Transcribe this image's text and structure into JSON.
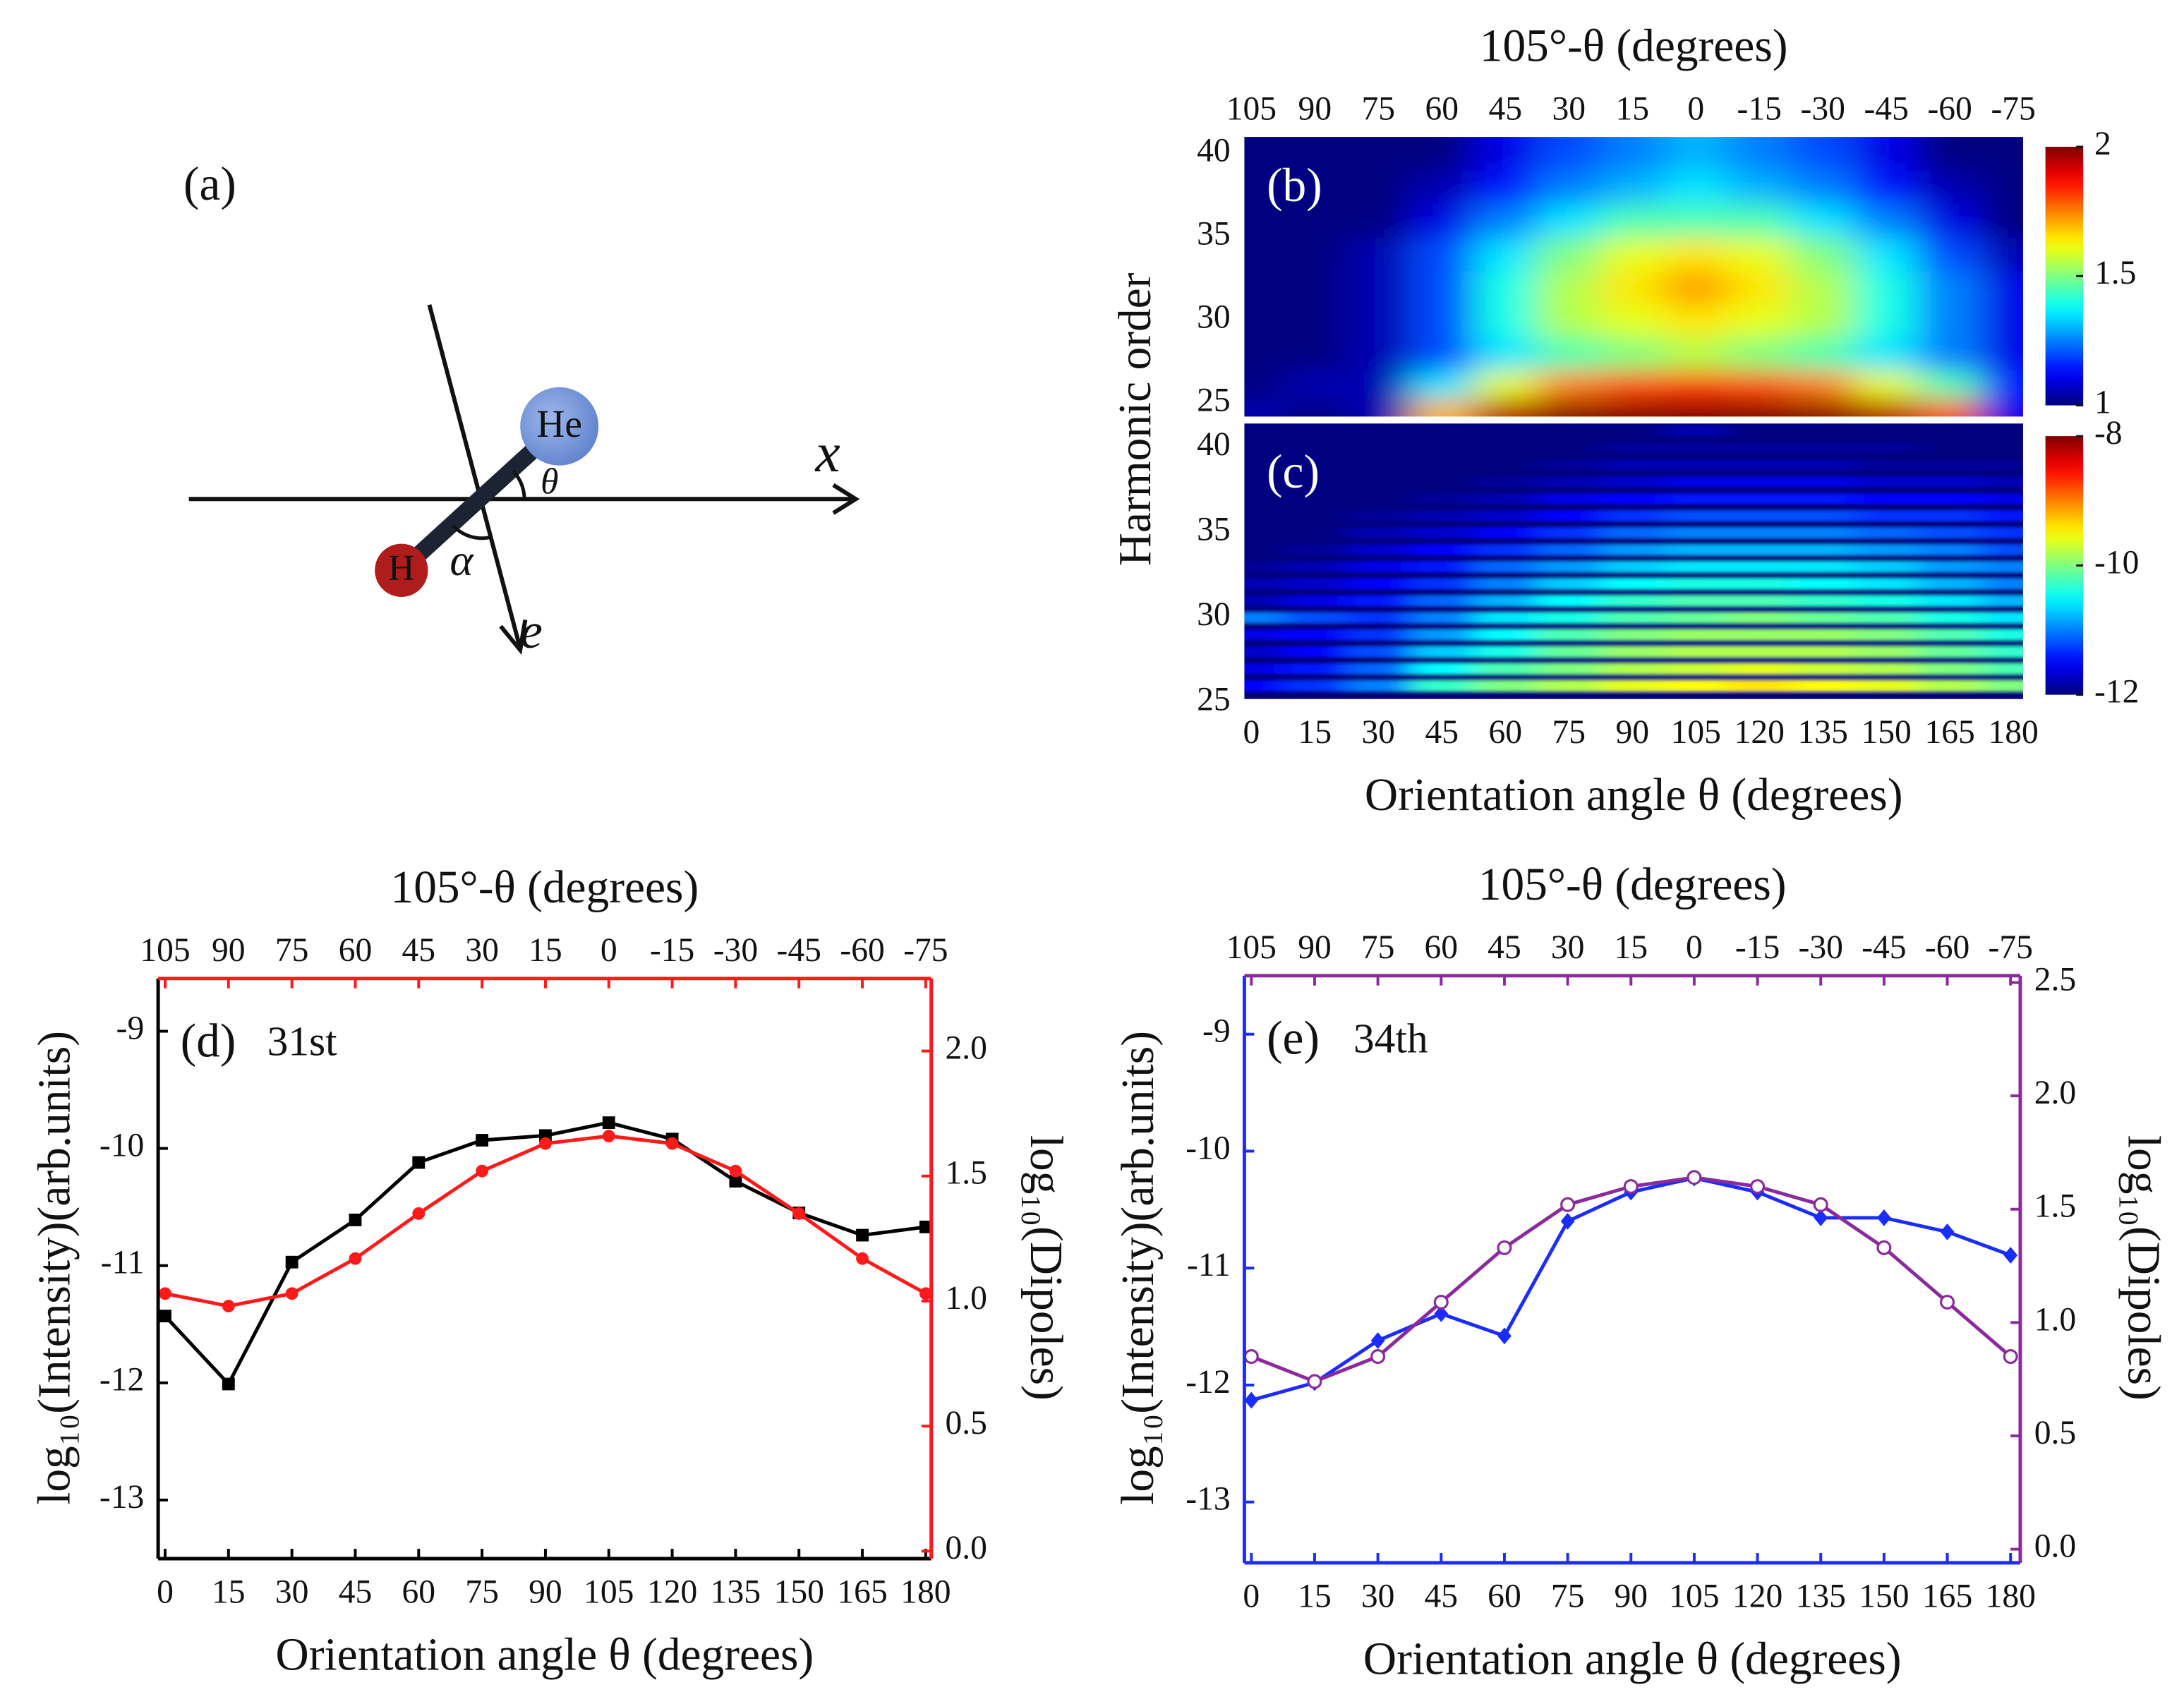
{
  "diagram": {
    "label": "(a)",
    "atoms": [
      "He",
      "H"
    ],
    "axis": "x",
    "field": "e⃗",
    "angles": [
      "θ",
      "α"
    ]
  },
  "chart_data": [
    {
      "type": "heatmap",
      "label": "(b)",
      "x2label": "105°-θ (degrees)",
      "ylabel": "Harmonic order",
      "x": [
        0,
        15,
        30,
        45,
        60,
        75,
        90,
        105,
        120,
        135,
        150,
        165,
        180
      ],
      "y": [
        24.5,
        26,
        28,
        30,
        32,
        34,
        36,
        38,
        40
      ],
      "values": [
        [
          1.05,
          1.0,
          1.05,
          1.7,
          1.95,
          2.0,
          2.0,
          2.0,
          2.0,
          2.0,
          1.95,
          1.8,
          1.1
        ],
        [
          1.0,
          1.05,
          1.05,
          1.35,
          1.6,
          1.75,
          1.8,
          1.82,
          1.8,
          1.75,
          1.6,
          1.45,
          1.15
        ],
        [
          1.0,
          1.0,
          1.05,
          1.2,
          1.35,
          1.45,
          1.5,
          1.55,
          1.5,
          1.45,
          1.35,
          1.25,
          1.1
        ],
        [
          1.0,
          1.0,
          1.05,
          1.2,
          1.4,
          1.55,
          1.6,
          1.65,
          1.6,
          1.55,
          1.4,
          1.25,
          1.1
        ],
        [
          1.0,
          1.0,
          1.05,
          1.2,
          1.4,
          1.55,
          1.65,
          1.72,
          1.65,
          1.55,
          1.4,
          1.25,
          1.1
        ],
        [
          1.0,
          1.0,
          1.05,
          1.2,
          1.35,
          1.5,
          1.6,
          1.65,
          1.6,
          1.5,
          1.35,
          1.2,
          1.05
        ],
        [
          1.0,
          1.0,
          1.0,
          1.1,
          1.25,
          1.35,
          1.45,
          1.45,
          1.45,
          1.35,
          1.25,
          1.1,
          1.0
        ],
        [
          1.0,
          1.0,
          1.0,
          1.05,
          1.15,
          1.25,
          1.3,
          1.35,
          1.3,
          1.25,
          1.15,
          1.05,
          1.0
        ],
        [
          1.0,
          1.0,
          1.0,
          1.0,
          1.1,
          1.2,
          1.25,
          1.3,
          1.25,
          1.2,
          1.1,
          1.0,
          1.0
        ]
      ],
      "xlim": [
        -1.65,
        182.3
      ],
      "ylim": [
        24.2,
        41
      ],
      "yticks": [
        25,
        30,
        35,
        40
      ],
      "x2ticks": [
        {
          "value": 0,
          "label": "105"
        },
        {
          "value": 15,
          "label": "90"
        },
        {
          "value": 30,
          "label": "75"
        },
        {
          "value": 45,
          "label": "60"
        },
        {
          "value": 60,
          "label": "45"
        },
        {
          "value": 75,
          "label": "30"
        },
        {
          "value": 90,
          "label": "15"
        },
        {
          "value": 105,
          "label": "0"
        },
        {
          "value": 120,
          "label": "-15"
        },
        {
          "value": 135,
          "label": "-30"
        },
        {
          "value": 150,
          "label": "-45"
        },
        {
          "value": 165,
          "label": "-60"
        },
        {
          "value": 180,
          "label": "-75"
        }
      ],
      "clim": [
        1,
        2
      ],
      "cticks": [
        1,
        1.5,
        2
      ]
    },
    {
      "type": "heatmap",
      "label": "(c)",
      "xlabel": "Orientation angle θ (degrees)",
      "x": [
        0,
        15,
        30,
        45,
        60,
        75,
        90,
        105,
        120,
        135,
        150,
        165,
        180
      ],
      "y": [
        26,
        27,
        28,
        29,
        30,
        31,
        32,
        33,
        34,
        35,
        36,
        37,
        38,
        39,
        40,
        41
      ],
      "values": [
        [
          -11.5,
          -11.3,
          -11,
          -10.3,
          -10,
          -9.8,
          -9.6,
          -9.5,
          -9.4,
          -9.5,
          -9.6,
          -9.8,
          -10
        ],
        [
          -11.6,
          -11.4,
          -11.1,
          -10.5,
          -10.2,
          -10,
          -9.8,
          -9.7,
          -9.6,
          -9.7,
          -9.8,
          -10,
          -10.2
        ],
        [
          -11.7,
          -11.5,
          -11.2,
          -10.7,
          -10.4,
          -10.1,
          -9.9,
          -9.8,
          -9.8,
          -9.8,
          -9.9,
          -10.1,
          -10.3
        ],
        [
          -11.6,
          -11.5,
          -11.3,
          -10.9,
          -10.5,
          -10.2,
          -10,
          -9.9,
          -9.9,
          -9.9,
          -10,
          -10.2,
          -10.4
        ],
        [
          -11,
          -11.2,
          -11.3,
          -11,
          -10.6,
          -10.4,
          -10.2,
          -10.1,
          -10,
          -10.1,
          -10.2,
          -10.4,
          -10.6
        ],
        [
          -11.8,
          -11.6,
          -11.4,
          -11.1,
          -10.8,
          -10.5,
          -10.3,
          -10.2,
          -10.2,
          -10.3,
          -10.4,
          -10.6,
          -10.8
        ],
        [
          -11.8,
          -11.7,
          -11.5,
          -11.3,
          -11,
          -10.7,
          -10.5,
          -10.4,
          -10.4,
          -10.5,
          -10.6,
          -10.8,
          -11
        ],
        [
          -11.9,
          -11.8,
          -11.6,
          -11.4,
          -11.1,
          -10.9,
          -10.7,
          -10.6,
          -10.6,
          -10.6,
          -10.7,
          -10.9,
          -11
        ],
        [
          -12,
          -11.9,
          -11.7,
          -11.5,
          -11.3,
          -11.1,
          -10.9,
          -10.8,
          -10.8,
          -10.8,
          -10.9,
          -11,
          -11.2
        ],
        [
          -12,
          -12,
          -11.8,
          -11.7,
          -11.5,
          -11.3,
          -11.1,
          -11,
          -11,
          -11,
          -11.1,
          -11.2,
          -11.3
        ],
        [
          -12,
          -12,
          -11.9,
          -11.8,
          -11.7,
          -11.5,
          -11.3,
          -11.2,
          -11.2,
          -11.2,
          -11.3,
          -11.3,
          -11.4
        ],
        [
          -12,
          -12,
          -12,
          -11.9,
          -11.8,
          -11.6,
          -11.5,
          -11.4,
          -11.4,
          -11.4,
          -11.5,
          -11.5,
          -11.6
        ],
        [
          -12,
          -12,
          -12,
          -12,
          -11.9,
          -11.8,
          -11.7,
          -11.6,
          -11.6,
          -11.6,
          -11.7,
          -11.7,
          -11.8
        ],
        [
          -12,
          -12,
          -12,
          -12,
          -12,
          -11.9,
          -11.8,
          -11.8,
          -11.8,
          -11.8,
          -11.9,
          -11.9,
          -11.9
        ],
        [
          -12,
          -12,
          -12,
          -12,
          -12,
          -12,
          -11.9,
          -11.9,
          -11.9,
          -11.9,
          -11.9,
          -12,
          -12
        ],
        [
          -12,
          -12,
          -12,
          -12,
          -12,
          -12,
          -12,
          -11.8,
          -12,
          -12,
          -12,
          -12,
          -12
        ]
      ],
      "xlim": [
        -1.65,
        182.3
      ],
      "ylim": [
        25.2,
        41.4
      ],
      "yticks": [
        25,
        30,
        35,
        40
      ],
      "xticks": [
        0,
        15,
        30,
        45,
        60,
        75,
        90,
        105,
        120,
        135,
        150,
        165,
        180
      ],
      "clim": [
        -12,
        -8
      ],
      "cticks": [
        -12,
        -10,
        -8
      ]
    },
    {
      "type": "line",
      "label": "(d)",
      "annotation": "31st",
      "x2label": "105°-θ (degrees)",
      "xlabel": "Orientation angle θ (degrees)",
      "ylabel": "log₁₀(Intensity)(arb.units)",
      "y2label": "log₁₀(Dipoles)",
      "x": [
        0,
        15,
        30,
        45,
        60,
        75,
        90,
        105,
        120,
        135,
        150,
        165,
        180
      ],
      "series": [
        {
          "color": "#000000",
          "marker": "square",
          "values": [
            -11.43,
            -12.01,
            -10.97,
            -10.61,
            -10.12,
            -9.93,
            -9.89,
            -9.78,
            -9.92,
            -10.28,
            -10.55,
            -10.74,
            -10.67
          ]
        },
        {
          "color": "#ff1a1a",
          "marker": "circle",
          "axis": "y2",
          "values": [
            1.03,
            0.98,
            1.03,
            1.17,
            1.35,
            1.52,
            1.63,
            1.66,
            1.63,
            1.52,
            1.35,
            1.17,
            1.03
          ]
        }
      ],
      "xlim": [
        -1.65,
        181.3
      ],
      "ylim": [
        -13.5,
        -8.55
      ],
      "y2lim": [
        -0.03,
        2.29
      ],
      "xticks": [
        0,
        15,
        30,
        45,
        60,
        75,
        90,
        105,
        120,
        135,
        150,
        165,
        180
      ],
      "x2ticks": [
        {
          "value": 0,
          "label": "105"
        },
        {
          "value": 15,
          "label": "90"
        },
        {
          "value": 30,
          "label": "75"
        },
        {
          "value": 45,
          "label": "60"
        },
        {
          "value": 60,
          "label": "45"
        },
        {
          "value": 75,
          "label": "30"
        },
        {
          "value": 90,
          "label": "15"
        },
        {
          "value": 105,
          "label": "0"
        },
        {
          "value": 120,
          "label": "-15"
        },
        {
          "value": 135,
          "label": "-30"
        },
        {
          "value": 150,
          "label": "-45"
        },
        {
          "value": 165,
          "label": "-60"
        },
        {
          "value": 180,
          "label": "-75"
        }
      ],
      "yticks": [
        -13,
        -12,
        -11,
        -10,
        -9
      ],
      "y2ticks": [
        {
          "value": 0,
          "label": "0.0"
        },
        0.5,
        {
          "value": 1,
          "label": "1.0"
        },
        1.5,
        {
          "value": 2,
          "label": "2.0"
        }
      ]
    },
    {
      "type": "line",
      "label": "(e)",
      "annotation": "34th",
      "x2label": "105°-θ (degrees)",
      "xlabel": "Orientation angle θ (degrees)",
      "ylabel": "log₁₀(Intensity)(arb.units)",
      "y2label": "log₁₀(Dipoles)",
      "x": [
        0,
        15,
        30,
        45,
        60,
        75,
        90,
        105,
        120,
        135,
        150,
        165,
        180
      ],
      "series": [
        {
          "color": "#1a2cff",
          "marker": "diamond",
          "values": [
            -12.13,
            -11.98,
            -11.62,
            -11.39,
            -11.58,
            -10.6,
            -10.35,
            -10.23,
            -10.35,
            -10.57,
            -10.57,
            -10.69,
            -10.89
          ]
        },
        {
          "color": "#8b2a9c",
          "marker": "circle-open",
          "axis": "y2",
          "values": [
            0.85,
            0.74,
            0.85,
            1.09,
            1.33,
            1.52,
            1.6,
            1.64,
            1.6,
            1.52,
            1.33,
            1.09,
            0.85
          ]
        }
      ],
      "xlim": [
        -1.65,
        182.3
      ],
      "ylim": [
        -13.52,
        -8.5
      ],
      "y2lim": [
        -0.06,
        2.53
      ],
      "xticks": [
        0,
        15,
        30,
        45,
        60,
        75,
        90,
        105,
        120,
        135,
        150,
        165,
        180
      ],
      "x2ticks": [
        {
          "value": 0,
          "label": "105"
        },
        {
          "value": 15,
          "label": "90"
        },
        {
          "value": 30,
          "label": "75"
        },
        {
          "value": 45,
          "label": "60"
        },
        {
          "value": 60,
          "label": "45"
        },
        {
          "value": 75,
          "label": "30"
        },
        {
          "value": 90,
          "label": "15"
        },
        {
          "value": 105,
          "label": "0"
        },
        {
          "value": 120,
          "label": "-15"
        },
        {
          "value": 135,
          "label": "-30"
        },
        {
          "value": 150,
          "label": "-45"
        },
        {
          "value": 165,
          "label": "-60"
        },
        {
          "value": 180,
          "label": "-75"
        }
      ],
      "yticks": [
        -13,
        -12,
        -11,
        -10,
        -9
      ],
      "y2ticks": [
        {
          "value": 0,
          "label": "0.0"
        },
        0.5,
        {
          "value": 1,
          "label": "1.0"
        },
        1.5,
        {
          "value": 2,
          "label": "2.0"
        },
        2.5
      ]
    }
  ]
}
